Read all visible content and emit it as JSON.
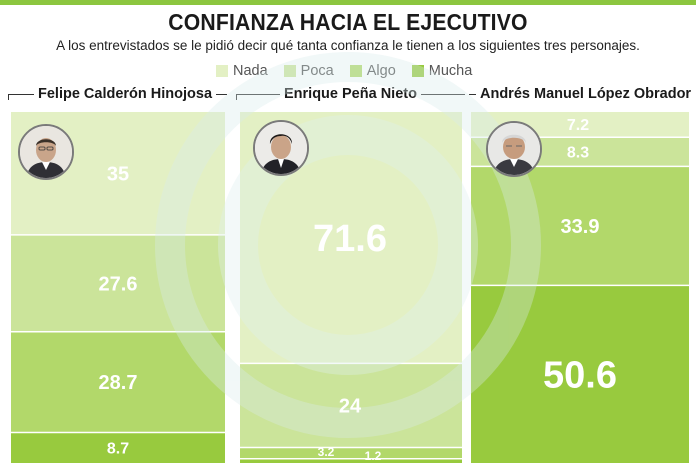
{
  "header": {
    "title": "CONFIANZA HACIA EL EJECUTIVO",
    "subtitle": "A los entrevistados se le pidió decir qué tanta confianza le tienen a los siguientes tres personajes."
  },
  "legend": [
    {
      "label": "Nada",
      "color": "#e3f0c4"
    },
    {
      "label": "Poca",
      "color": "#cbe49a"
    },
    {
      "label": "Algo",
      "color": "#b2d86a"
    },
    {
      "label": "Mucha",
      "color": "#98ca3e"
    }
  ],
  "panel_colors": [
    "#e3f0c4",
    "#cbe49a",
    "#b2d86a",
    "#98ca3e"
  ],
  "chart_data": {
    "type": "bar",
    "stacked": true,
    "categories": [
      "Felipe Calderón Hinojosa",
      "Enrique Peña Nieto",
      "Andrés Manuel López Obrador"
    ],
    "stack_order": [
      "Nada",
      "Poca",
      "Algo",
      "Mucha"
    ],
    "series": [
      {
        "name": "Nada",
        "values": [
          35,
          71.6,
          7.2
        ]
      },
      {
        "name": "Poca",
        "values": [
          27.6,
          24,
          8.3
        ]
      },
      {
        "name": "Algo",
        "values": [
          28.7,
          3.2,
          33.9
        ]
      },
      {
        "name": "Mucha",
        "values": [
          8.7,
          1.2,
          50.6
        ]
      }
    ],
    "ylim": [
      0,
      100
    ],
    "title": "CONFIANZA HACIA EL EJECUTIVO"
  }
}
